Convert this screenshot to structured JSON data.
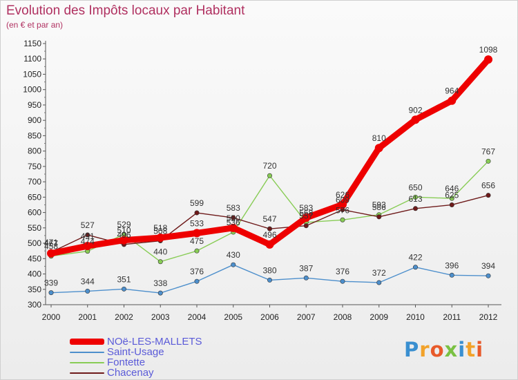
{
  "header": {
    "title": "Evolution des Impôts locaux par Habitant",
    "subtitle": "(en € et par an)"
  },
  "brand": {
    "text": "Proxiti",
    "letter_colors": [
      "#3a8fd0",
      "#f2a22a",
      "#e85a2a",
      "#7ac143",
      "#3a8fd0",
      "#f2a22a",
      "#e85a2a"
    ]
  },
  "chart_data": {
    "type": "line",
    "title": "Evolution des Impôts locaux par Habitant",
    "subtitle": "(en € et par an)",
    "xlabel": "",
    "ylabel": "",
    "x": [
      "2000",
      "2001",
      "2002",
      "2003",
      "2004",
      "2005",
      "2006",
      "2007",
      "2008",
      "2009",
      "2010",
      "2011",
      "2012"
    ],
    "ylim": [
      300,
      1150
    ],
    "yticks": [
      300,
      350,
      400,
      450,
      500,
      550,
      600,
      650,
      700,
      750,
      800,
      850,
      900,
      950,
      1000,
      1050,
      1100,
      1150
    ],
    "grid": false,
    "legend_position": "bottom-left",
    "series": [
      {
        "name": "NOë-LES-MALLETS",
        "color": "#ee0000",
        "values": [
          467,
          491,
          510,
          518,
          533,
          550,
          496,
          583,
          626,
          810,
          902,
          964,
          1098
        ],
        "labels": [
          "467",
          "491",
          "510",
          "518",
          "533",
          "550",
          "496",
          "583",
          "626",
          "810",
          "902",
          "964",
          "1098"
        ]
      },
      {
        "name": "Saint-Usage",
        "color": "#4d8fcc",
        "values": [
          339,
          344,
          351,
          338,
          376,
          430,
          380,
          387,
          376,
          372,
          422,
          396,
          394
        ],
        "labels": [
          "339",
          "344",
          "351",
          "338",
          "376",
          "430",
          "380",
          "387",
          "376",
          "372",
          "422",
          "396",
          "394"
        ]
      },
      {
        "name": "Fontette",
        "color": "#88cc55",
        "values": [
          458,
          474,
          529,
          440,
          475,
          536,
          720,
          568,
          576,
          593,
          650,
          646,
          767
        ],
        "labels": [
          "458",
          "474",
          "529",
          "440",
          "475",
          "536",
          "720",
          "568",
          "576",
          "593",
          "650",
          "646",
          "767"
        ]
      },
      {
        "name": "Chacenay",
        "color": "#6e1a1a",
        "values": [
          471,
          527,
          496,
          508,
          599,
          583,
          547,
          557,
          609,
          586,
          613,
          625,
          656
        ],
        "labels": [
          "471",
          "527",
          "496",
          "508",
          "599",
          "583",
          "547",
          "557",
          "609",
          "586",
          "613",
          "625",
          "656"
        ]
      }
    ]
  }
}
